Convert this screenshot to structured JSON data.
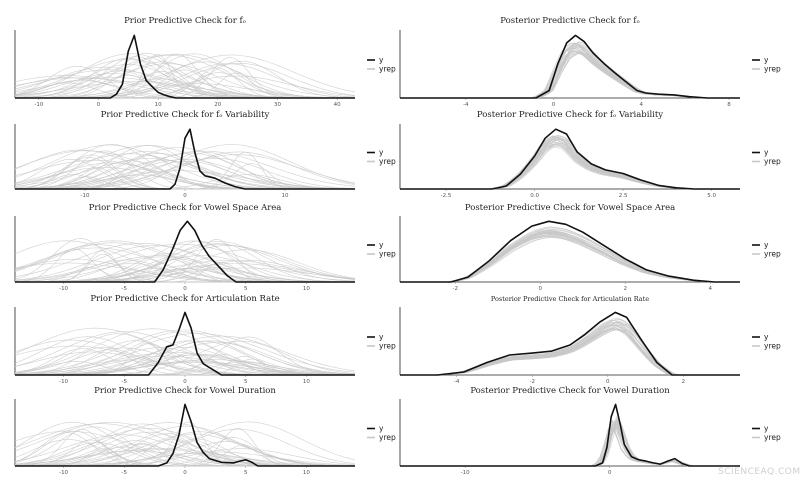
{
  "watermark": "SCIENCEAQ.COM",
  "colors": {
    "y": "#111111",
    "yrep": "#c8c8c8",
    "axis": "#222222"
  },
  "legend": {
    "y_label": "y",
    "yrep_label": "yrep"
  },
  "chart_data": [
    {
      "type": "line",
      "title": "Prior Predictive Check for fₒ",
      "xlim": [
        -14,
        43
      ],
      "ticks": [
        -10,
        0,
        10,
        20,
        30,
        40
      ],
      "series": [
        {
          "name": "y",
          "x": [
            -14,
            2,
            3,
            4,
            5,
            6,
            7,
            8,
            9,
            10,
            11,
            12,
            13,
            43
          ],
          "values": [
            0,
            0,
            0.06,
            0.22,
            0.75,
            1.0,
            0.55,
            0.28,
            0.18,
            0.09,
            0.05,
            0.02,
            0,
            0
          ]
        }
      ]
    },
    {
      "type": "line",
      "title": "Posterior Predictive Check for fₒ",
      "xlim": [
        -7,
        8.5
      ],
      "ticks": [
        -4,
        0,
        4,
        8
      ],
      "series": [
        {
          "name": "y",
          "x": [
            -7,
            -0.8,
            -0.2,
            0.2,
            0.6,
            1.0,
            1.4,
            1.8,
            2.3,
            2.8,
            3.3,
            3.8,
            4.2,
            4.8,
            5.5,
            6.2,
            7.0,
            8.5
          ],
          "values": [
            0,
            0,
            0.12,
            0.55,
            0.88,
            1.0,
            0.9,
            0.72,
            0.55,
            0.4,
            0.26,
            0.12,
            0.08,
            0.06,
            0.05,
            0.02,
            0,
            0
          ]
        }
      ]
    },
    {
      "type": "line",
      "title": "Prior Predictive Check for fₒ Variability",
      "xlim": [
        -17,
        17
      ],
      "ticks": [
        -10,
        0,
        10
      ],
      "series": [
        {
          "name": "y",
          "x": [
            -17,
            -1.5,
            -1,
            -0.5,
            0,
            0.5,
            1.0,
            1.5,
            2.0,
            3.0,
            4.0,
            5.0,
            6.0,
            17
          ],
          "values": [
            0,
            0,
            0.08,
            0.35,
            0.85,
            1.0,
            0.6,
            0.3,
            0.22,
            0.18,
            0.1,
            0.04,
            0,
            0
          ]
        }
      ]
    },
    {
      "type": "line",
      "title": "Posterior Predictive Check for fₒ Variability",
      "xlim": [
        -3.8,
        5.8
      ],
      "ticks": [
        -2.5,
        0.0,
        2.5,
        5.0
      ],
      "series": [
        {
          "name": "y",
          "x": [
            -3.8,
            -1.2,
            -0.8,
            -0.4,
            0,
            0.3,
            0.6,
            0.9,
            1.2,
            1.6,
            2.0,
            2.5,
            3.0,
            3.5,
            4.0,
            4.5,
            5.8
          ],
          "values": [
            0,
            0,
            0.05,
            0.25,
            0.55,
            0.85,
            1.0,
            0.92,
            0.62,
            0.42,
            0.32,
            0.26,
            0.15,
            0.06,
            0.02,
            0,
            0
          ]
        }
      ]
    },
    {
      "type": "line",
      "title": "Prior Predictive Check for Vowel Space Area",
      "xlim": [
        -14,
        14
      ],
      "ticks": [
        -10,
        -5,
        0,
        5,
        10
      ],
      "series": [
        {
          "name": "y",
          "x": [
            -14,
            -2.5,
            -1.8,
            -1.0,
            -0.4,
            0.2,
            0.8,
            1.4,
            2.0,
            2.8,
            3.5,
            4.2,
            14
          ],
          "values": [
            0,
            0,
            0.2,
            0.55,
            0.85,
            1.0,
            0.85,
            0.6,
            0.42,
            0.25,
            0.1,
            0,
            0
          ]
        }
      ]
    },
    {
      "type": "line",
      "title": "Posterior Predictive Check for Vowel Space Area",
      "xlim": [
        -3.3,
        4.7
      ],
      "ticks": [
        -2,
        0,
        2,
        4
      ],
      "series": [
        {
          "name": "y",
          "x": [
            -3.3,
            -2.1,
            -1.7,
            -1.2,
            -0.7,
            -0.2,
            0.2,
            0.6,
            1.0,
            1.5,
            2.0,
            2.5,
            3.0,
            3.6,
            4.1,
            4.7
          ],
          "values": [
            0,
            0,
            0.08,
            0.35,
            0.68,
            0.92,
            1.0,
            0.95,
            0.82,
            0.6,
            0.38,
            0.2,
            0.1,
            0.03,
            0,
            0
          ]
        }
      ]
    },
    {
      "type": "line",
      "title": "Prior Predictive Check for Articulation Rate",
      "xlim": [
        -14,
        14
      ],
      "ticks": [
        -10,
        -5,
        0,
        5,
        10
      ],
      "series": [
        {
          "name": "y",
          "x": [
            -14,
            -3.0,
            -2.2,
            -1.5,
            -1.0,
            -0.5,
            0,
            0.5,
            1.0,
            1.5,
            2.0,
            2.5,
            3.0,
            14
          ],
          "values": [
            0,
            0,
            0.2,
            0.45,
            0.48,
            0.72,
            1.0,
            0.75,
            0.35,
            0.18,
            0.12,
            0.06,
            0,
            0
          ]
        }
      ]
    },
    {
      "type": "line",
      "title": "Posterior Predictive Check for Articulation Rate",
      "xlim": [
        -5.5,
        3.5
      ],
      "ticks": [
        -4,
        -2,
        0,
        2
      ],
      "series": [
        {
          "name": "y",
          "x": [
            -5.5,
            -4.5,
            -3.8,
            -3.2,
            -2.6,
            -2.0,
            -1.5,
            -1.0,
            -0.6,
            -0.2,
            0.2,
            0.5,
            0.9,
            1.3,
            1.7,
            3.5
          ],
          "values": [
            0,
            0,
            0.05,
            0.2,
            0.32,
            0.35,
            0.38,
            0.48,
            0.65,
            0.85,
            1.0,
            0.92,
            0.55,
            0.2,
            0,
            0
          ]
        }
      ]
    },
    {
      "type": "line",
      "title": "Prior Predictive Check for Vowel Duration",
      "xlim": [
        -14,
        14
      ],
      "ticks": [
        -10,
        -5,
        0,
        5,
        10
      ],
      "series": [
        {
          "name": "y",
          "x": [
            -14,
            -2.2,
            -1.5,
            -1.0,
            -0.5,
            0,
            0.5,
            1.0,
            1.5,
            2.0,
            3.0,
            4.0,
            4.5,
            5.0,
            5.5,
            6.0,
            14
          ],
          "values": [
            0,
            0,
            0.05,
            0.2,
            0.5,
            1.0,
            0.72,
            0.38,
            0.22,
            0.12,
            0.06,
            0.05,
            0.08,
            0.1,
            0.06,
            0,
            0
          ]
        }
      ]
    },
    {
      "type": "line",
      "title": "Posterior Predictive Check for Vowel Duration",
      "xlim": [
        -14.5,
        9
      ],
      "ticks": [
        -10,
        0
      ],
      "series": [
        {
          "name": "y",
          "x": [
            -14.5,
            -1.0,
            -0.5,
            -0.2,
            0.1,
            0.4,
            0.7,
            1.0,
            1.5,
            2.0,
            2.5,
            3.0,
            3.5,
            4.0,
            4.5,
            5.0,
            5.5,
            9
          ],
          "values": [
            0,
            0,
            0.05,
            0.3,
            0.8,
            1.0,
            0.7,
            0.35,
            0.15,
            0.1,
            0.08,
            0.05,
            0.03,
            0.08,
            0.12,
            0.04,
            0,
            0
          ]
        }
      ]
    }
  ]
}
